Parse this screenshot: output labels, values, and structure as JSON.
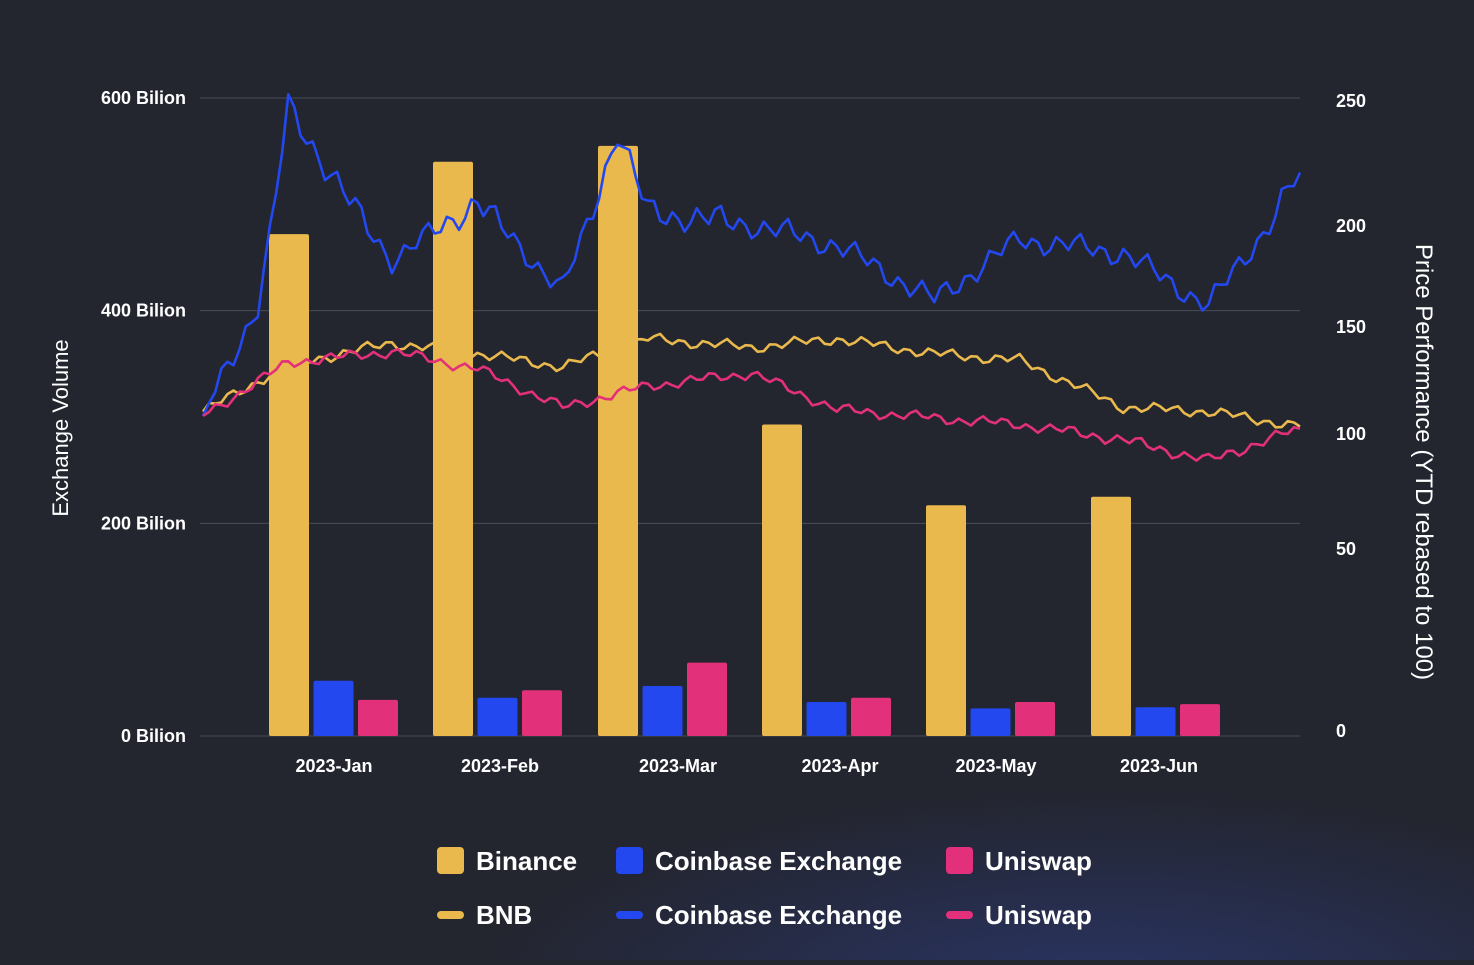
{
  "chart_data": {
    "type": "bar",
    "categories": [
      "2023-Jan",
      "2023-Feb",
      "2023-Mar",
      "2023-Apr",
      "2023-May",
      "2023-Jun"
    ],
    "ylabel": "Exchange Volume",
    "ylabel_right": "Price Performance (YTD rebased to 100)",
    "y_ticks": [
      {
        "value": 0,
        "label": "0 Bilion"
      },
      {
        "value": 200,
        "label": "200 Bilion"
      },
      {
        "value": 400,
        "label": "400 Bilion"
      },
      {
        "value": 600,
        "label": "600 Bilion"
      }
    ],
    "y_right_ticks": [
      {
        "value": 0,
        "label": "0"
      },
      {
        "value": 50,
        "label": "50"
      },
      {
        "value": 100,
        "label": "100"
      },
      {
        "value": 150,
        "label": "150"
      },
      {
        "value": 200,
        "label": "200"
      },
      {
        "value": 250,
        "label": "250"
      }
    ],
    "ylim": [
      0,
      600
    ],
    "ylim_right": [
      0,
      250
    ],
    "y_right_scale": "nonlinear (ticks unevenly spaced)",
    "grid": true,
    "legend_position": "bottom",
    "bar_series": [
      {
        "name": "Binance",
        "color": "#e9b94d",
        "values": [
          472,
          540,
          555,
          293,
          217,
          225
        ]
      },
      {
        "name": "Coinbase Exchange",
        "color": "#2348f0",
        "values": [
          52,
          36,
          47,
          32,
          26,
          27
        ]
      },
      {
        "name": "Uniswap",
        "color": "#e3307a",
        "values": [
          34,
          43,
          69,
          36,
          32,
          30
        ]
      }
    ],
    "line_series": [
      {
        "name": "BNB",
        "color": "#e9b94d",
        "x": [
          "2023-01-01",
          "2023-01-15",
          "2023-02-01",
          "2023-02-15",
          "2023-03-01",
          "2023-03-15",
          "2023-04-01",
          "2023-04-15",
          "2023-05-01",
          "2023-05-15",
          "2023-06-01",
          "2023-06-15",
          "2023-06-30"
        ],
        "values": [
          110,
          132,
          142,
          137,
          131,
          144,
          140,
          144,
          137,
          134,
          112,
          110,
          103
        ]
      },
      {
        "name": "Coinbase Exchange",
        "color": "#2348f0",
        "x": [
          "2023-01-01",
          "2023-01-10",
          "2023-01-15",
          "2023-02-01",
          "2023-02-15",
          "2023-03-01",
          "2023-03-10",
          "2023-03-15",
          "2023-04-01",
          "2023-04-15",
          "2023-05-01",
          "2023-05-15",
          "2023-06-01",
          "2023-06-15",
          "2023-06-30"
        ],
        "values": [
          108,
          160,
          247,
          183,
          210,
          168,
          238,
          205,
          200,
          190,
          163,
          193,
          186,
          160,
          221
        ]
      },
      {
        "name": "Uniswap",
        "color": "#e3307a",
        "x": [
          "2023-01-01",
          "2023-01-15",
          "2023-02-01",
          "2023-02-15",
          "2023-03-01",
          "2023-03-15",
          "2023-04-01",
          "2023-04-15",
          "2023-05-01",
          "2023-05-15",
          "2023-06-01",
          "2023-06-15",
          "2023-06-30"
        ],
        "values": [
          108,
          133,
          138,
          130,
          112,
          122,
          128,
          111,
          107,
          104,
          97,
          88,
          102
        ]
      }
    ],
    "legend": [
      {
        "label": "Binance",
        "kind": "bar",
        "color": "#e9b94d"
      },
      {
        "label": "Coinbase Exchange",
        "kind": "bar",
        "color": "#2348f0"
      },
      {
        "label": "Uniswap",
        "kind": "bar",
        "color": "#e3307a"
      },
      {
        "label": "BNB",
        "kind": "line",
        "color": "#e9b94d"
      },
      {
        "label": "Coinbase Exchange",
        "kind": "line",
        "color": "#2348f0"
      },
      {
        "label": "Uniswap",
        "kind": "line",
        "color": "#e3307a"
      }
    ]
  }
}
